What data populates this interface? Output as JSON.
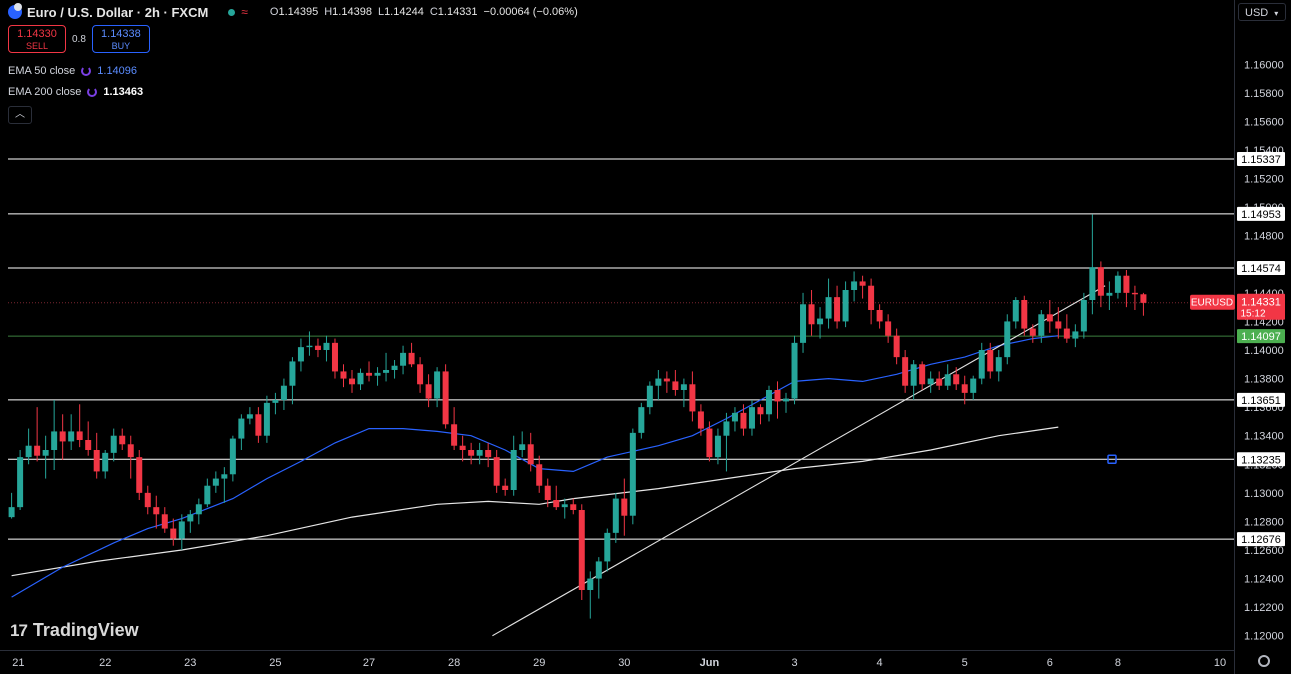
{
  "header": {
    "title": "Euro / U.S. Dollar · 2h · FXCM",
    "ohlc": [
      {
        "key": "O",
        "value": "1.14395"
      },
      {
        "key": "H",
        "value": "1.14398"
      },
      {
        "key": "L",
        "value": "1.14244"
      },
      {
        "key": "C",
        "value": "1.14331"
      }
    ],
    "change": "−0.00064 (−0.06%)"
  },
  "trade": {
    "sell_price": "1.14330",
    "sell_label": "SELL",
    "spread": "0.8",
    "buy_price": "1.14338",
    "buy_label": "BUY"
  },
  "indicators": [
    {
      "label": "EMA 50 close",
      "value": "1.14096",
      "color": "#2962ff"
    },
    {
      "label": "EMA 200 close",
      "value": "1.13463",
      "color": "#e6e6e6"
    }
  ],
  "currency": "USD",
  "watermark": "TradingView",
  "colors": {
    "up": "#26a69a",
    "down": "#f23645",
    "ema50": "#2962ff",
    "ema200": "#e6e6e6",
    "level": "#ffffff",
    "ema_badge": "#4caf50",
    "last_price": "#f23645"
  },
  "chart_data": {
    "type": "candlestick",
    "symbol": "EURUSD",
    "y_axis": {
      "range": [
        1.119,
        1.1645
      ],
      "ticks": [
        "1.16000",
        "1.15800",
        "1.15600",
        "1.15400",
        "1.15200",
        "1.15000",
        "1.14800",
        "1.14600",
        "1.14400",
        "1.14200",
        "1.14000",
        "1.13800",
        "1.13600",
        "1.13400",
        "1.13200",
        "1.13000",
        "1.12800",
        "1.12600",
        "1.12400",
        "1.12200",
        "1.12000"
      ]
    },
    "x_axis": {
      "labels": [
        "21",
        "22",
        "23",
        "25",
        "27",
        "28",
        "29",
        "30",
        "Jun",
        "3",
        "4",
        "5",
        "6",
        "8",
        "10"
      ],
      "label_bars": [
        0.8,
        11,
        21,
        31,
        42,
        52,
        62,
        72,
        82,
        92,
        102,
        112,
        122,
        130,
        142
      ],
      "total_bars": 144
    },
    "levels": [
      "1.15337",
      "1.14953",
      "1.14574",
      "1.14097",
      "1.13651",
      "1.13235",
      "1.12676"
    ],
    "last_price": {
      "symbol": "EURUSD",
      "value": "1.14331",
      "countdown": "15:12"
    },
    "ema50_level": "1.14097",
    "trendline": [
      [
        56.5,
        1.12
      ],
      [
        128.5,
        1.1445
      ]
    ],
    "ema50_series": [
      [
        0,
        1.1227
      ],
      [
        6,
        1.1248
      ],
      [
        12,
        1.1265
      ],
      [
        16,
        1.1275
      ],
      [
        20,
        1.1282
      ],
      [
        26,
        1.1296
      ],
      [
        30,
        1.131
      ],
      [
        34,
        1.1322
      ],
      [
        38,
        1.1335
      ],
      [
        42,
        1.1345
      ],
      [
        46,
        1.1345
      ],
      [
        50,
        1.1343
      ],
      [
        54,
        1.134
      ],
      [
        58,
        1.133
      ],
      [
        62,
        1.1317
      ],
      [
        66,
        1.1315
      ],
      [
        70,
        1.1325
      ],
      [
        76,
        1.1333
      ],
      [
        80,
        1.134
      ],
      [
        84,
        1.1352
      ],
      [
        88,
        1.1365
      ],
      [
        92,
        1.1378
      ],
      [
        96,
        1.138
      ],
      [
        100,
        1.1378
      ],
      [
        104,
        1.1383
      ],
      [
        108,
        1.139
      ],
      [
        112,
        1.1395
      ],
      [
        116,
        1.1403
      ],
      [
        120,
        1.1408
      ],
      [
        123,
        1.141
      ]
    ],
    "ema200_series": [
      [
        0,
        1.1242
      ],
      [
        10,
        1.1252
      ],
      [
        20,
        1.126
      ],
      [
        30,
        1.127
      ],
      [
        40,
        1.1283
      ],
      [
        50,
        1.1292
      ],
      [
        56,
        1.1294
      ],
      [
        62,
        1.1292
      ],
      [
        66,
        1.1296
      ],
      [
        76,
        1.1303
      ],
      [
        84,
        1.131
      ],
      [
        92,
        1.1317
      ],
      [
        100,
        1.1322
      ],
      [
        108,
        1.133
      ],
      [
        116,
        1.134
      ],
      [
        123,
        1.1346
      ]
    ],
    "candles": [
      [
        1.1283,
        1.13,
        1.1282,
        1.129
      ],
      [
        1.129,
        1.133,
        1.1288,
        1.1325
      ],
      [
        1.1325,
        1.1345,
        1.132,
        1.1333
      ],
      [
        1.1333,
        1.136,
        1.1322,
        1.1326
      ],
      [
        1.1326,
        1.134,
        1.131,
        1.133
      ],
      [
        1.133,
        1.1365,
        1.1316,
        1.1343
      ],
      [
        1.1343,
        1.1355,
        1.1323,
        1.1336
      ],
      [
        1.1336,
        1.1355,
        1.133,
        1.1343
      ],
      [
        1.1343,
        1.1362,
        1.1332,
        1.1337
      ],
      [
        1.1337,
        1.135,
        1.1326,
        1.133
      ],
      [
        1.133,
        1.1342,
        1.131,
        1.1315
      ],
      [
        1.1315,
        1.133,
        1.131,
        1.1328
      ],
      [
        1.1328,
        1.1345,
        1.1322,
        1.134
      ],
      [
        1.134,
        1.1345,
        1.133,
        1.1334
      ],
      [
        1.1334,
        1.134,
        1.131,
        1.1325
      ],
      [
        1.1325,
        1.133,
        1.1295,
        1.13
      ],
      [
        1.13,
        1.1305,
        1.1285,
        1.129
      ],
      [
        1.129,
        1.1298,
        1.1275,
        1.1285
      ],
      [
        1.1285,
        1.129,
        1.1272,
        1.1275
      ],
      [
        1.1275,
        1.1282,
        1.1263,
        1.1268
      ],
      [
        1.1268,
        1.1285,
        1.126,
        1.128
      ],
      [
        1.128,
        1.1288,
        1.1272,
        1.1285
      ],
      [
        1.1285,
        1.1296,
        1.1278,
        1.1292
      ],
      [
        1.1292,
        1.131,
        1.129,
        1.1305
      ],
      [
        1.1305,
        1.1315,
        1.13,
        1.131
      ],
      [
        1.131,
        1.1318,
        1.1293,
        1.1313
      ],
      [
        1.1313,
        1.134,
        1.1308,
        1.1338
      ],
      [
        1.1338,
        1.1355,
        1.133,
        1.1352
      ],
      [
        1.1352,
        1.136,
        1.1348,
        1.1355
      ],
      [
        1.1355,
        1.136,
        1.1335,
        1.134
      ],
      [
        1.134,
        1.1368,
        1.1335,
        1.1363
      ],
      [
        1.1363,
        1.137,
        1.1355,
        1.1365
      ],
      [
        1.1365,
        1.138,
        1.1358,
        1.1375
      ],
      [
        1.1375,
        1.1395,
        1.1362,
        1.1392
      ],
      [
        1.1392,
        1.1408,
        1.1385,
        1.1402
      ],
      [
        1.1402,
        1.1413,
        1.1396,
        1.1403
      ],
      [
        1.1403,
        1.1408,
        1.1395,
        1.14
      ],
      [
        1.14,
        1.141,
        1.1392,
        1.1405
      ],
      [
        1.1405,
        1.1408,
        1.138,
        1.1385
      ],
      [
        1.1385,
        1.139,
        1.1374,
        1.138
      ],
      [
        1.138,
        1.1386,
        1.137,
        1.1376
      ],
      [
        1.1376,
        1.1387,
        1.1372,
        1.1384
      ],
      [
        1.1384,
        1.1392,
        1.1378,
        1.1382
      ],
      [
        1.1382,
        1.1388,
        1.1375,
        1.1384
      ],
      [
        1.1384,
        1.1398,
        1.1378,
        1.1386
      ],
      [
        1.1386,
        1.1393,
        1.138,
        1.1389
      ],
      [
        1.1389,
        1.1403,
        1.1383,
        1.1398
      ],
      [
        1.1398,
        1.1405,
        1.1388,
        1.139
      ],
      [
        1.139,
        1.1395,
        1.137,
        1.1376
      ],
      [
        1.1376,
        1.1383,
        1.136,
        1.1366
      ],
      [
        1.1366,
        1.1388,
        1.136,
        1.1385
      ],
      [
        1.1385,
        1.139,
        1.1345,
        1.1348
      ],
      [
        1.1348,
        1.136,
        1.133,
        1.1333
      ],
      [
        1.1333,
        1.134,
        1.1322,
        1.133
      ],
      [
        1.133,
        1.1335,
        1.132,
        1.1326
      ],
      [
        1.1326,
        1.1335,
        1.132,
        1.133
      ],
      [
        1.133,
        1.1335,
        1.1318,
        1.1325
      ],
      [
        1.1325,
        1.133,
        1.13,
        1.1305
      ],
      [
        1.1305,
        1.131,
        1.1298,
        1.1302
      ],
      [
        1.1302,
        1.134,
        1.1298,
        1.133
      ],
      [
        1.133,
        1.1343,
        1.1325,
        1.1334
      ],
      [
        1.1334,
        1.1342,
        1.1315,
        1.132
      ],
      [
        1.132,
        1.1326,
        1.13,
        1.1305
      ],
      [
        1.1305,
        1.131,
        1.129,
        1.1295
      ],
      [
        1.1295,
        1.1305,
        1.1288,
        1.129
      ],
      [
        1.129,
        1.1296,
        1.1282,
        1.1292
      ],
      [
        1.1292,
        1.1296,
        1.1285,
        1.1288
      ],
      [
        1.1288,
        1.1292,
        1.1225,
        1.1232
      ],
      [
        1.1232,
        1.1245,
        1.1212,
        1.124
      ],
      [
        1.124,
        1.1255,
        1.1226,
        1.1252
      ],
      [
        1.1252,
        1.1275,
        1.1245,
        1.1272
      ],
      [
        1.1272,
        1.13,
        1.1265,
        1.1296
      ],
      [
        1.1296,
        1.131,
        1.127,
        1.1284
      ],
      [
        1.1284,
        1.1345,
        1.1278,
        1.1342
      ],
      [
        1.1342,
        1.1363,
        1.1338,
        1.136
      ],
      [
        1.136,
        1.1378,
        1.1355,
        1.1375
      ],
      [
        1.1375,
        1.1386,
        1.1365,
        1.138
      ],
      [
        1.138,
        1.1385,
        1.137,
        1.1378
      ],
      [
        1.1378,
        1.1386,
        1.1368,
        1.1372
      ],
      [
        1.1372,
        1.138,
        1.136,
        1.1376
      ],
      [
        1.1376,
        1.1385,
        1.135,
        1.1357
      ],
      [
        1.1357,
        1.1362,
        1.134,
        1.1345
      ],
      [
        1.1345,
        1.135,
        1.1322,
        1.1325
      ],
      [
        1.1325,
        1.1345,
        1.132,
        1.134
      ],
      [
        1.134,
        1.1356,
        1.1315,
        1.135
      ],
      [
        1.135,
        1.136,
        1.1343,
        1.1356
      ],
      [
        1.1356,
        1.1362,
        1.134,
        1.1345
      ],
      [
        1.1345,
        1.1365,
        1.134,
        1.136
      ],
      [
        1.136,
        1.1362,
        1.1348,
        1.1355
      ],
      [
        1.1355,
        1.1375,
        1.135,
        1.1372
      ],
      [
        1.1372,
        1.1378,
        1.1352,
        1.1364
      ],
      [
        1.1364,
        1.137,
        1.1356,
        1.1366
      ],
      [
        1.1366,
        1.141,
        1.1362,
        1.1405
      ],
      [
        1.1405,
        1.144,
        1.1398,
        1.1432
      ],
      [
        1.1432,
        1.1442,
        1.141,
        1.1418
      ],
      [
        1.1418,
        1.143,
        1.1408,
        1.1422
      ],
      [
        1.1422,
        1.145,
        1.1415,
        1.1437
      ],
      [
        1.1437,
        1.1445,
        1.1415,
        1.142
      ],
      [
        1.142,
        1.1448,
        1.1416,
        1.1442
      ],
      [
        1.1442,
        1.1455,
        1.1434,
        1.1448
      ],
      [
        1.1448,
        1.1452,
        1.1436,
        1.1445
      ],
      [
        1.1445,
        1.145,
        1.1418,
        1.1428
      ],
      [
        1.1428,
        1.1432,
        1.1415,
        1.142
      ],
      [
        1.142,
        1.1425,
        1.1405,
        1.141
      ],
      [
        1.141,
        1.1415,
        1.139,
        1.1395
      ],
      [
        1.1395,
        1.14,
        1.137,
        1.1375
      ],
      [
        1.1375,
        1.1393,
        1.1365,
        1.139
      ],
      [
        1.139,
        1.1392,
        1.1372,
        1.1376
      ],
      [
        1.1376,
        1.1385,
        1.137,
        1.138
      ],
      [
        1.138,
        1.1385,
        1.1372,
        1.1375
      ],
      [
        1.1375,
        1.139,
        1.1372,
        1.1383
      ],
      [
        1.1383,
        1.1388,
        1.1372,
        1.1376
      ],
      [
        1.1376,
        1.1382,
        1.1362,
        1.137
      ],
      [
        1.137,
        1.1382,
        1.1365,
        1.138
      ],
      [
        1.138,
        1.1405,
        1.1376,
        1.14
      ],
      [
        1.14,
        1.1405,
        1.138,
        1.1385
      ],
      [
        1.1385,
        1.14,
        1.1378,
        1.1395
      ],
      [
        1.1395,
        1.1425,
        1.139,
        1.142
      ],
      [
        1.142,
        1.1437,
        1.1415,
        1.1435
      ],
      [
        1.1435,
        1.1438,
        1.141,
        1.1415
      ],
      [
        1.1415,
        1.1418,
        1.1405,
        1.141
      ],
      [
        1.141,
        1.1428,
        1.1405,
        1.1425
      ],
      [
        1.1425,
        1.1435,
        1.1412,
        1.142
      ],
      [
        1.142,
        1.143,
        1.1408,
        1.1415
      ],
      [
        1.1415,
        1.1425,
        1.1405,
        1.1408
      ],
      [
        1.1408,
        1.1418,
        1.1402,
        1.1413
      ],
      [
        1.1413,
        1.144,
        1.1408,
        1.1435
      ],
      [
        1.1435,
        1.1495,
        1.1425,
        1.1458
      ],
      [
        1.1458,
        1.1462,
        1.143,
        1.1438
      ],
      [
        1.1438,
        1.1448,
        1.1428,
        1.144
      ],
      [
        1.144,
        1.1455,
        1.1436,
        1.1452
      ],
      [
        1.1452,
        1.1456,
        1.143,
        1.144
      ],
      [
        1.144,
        1.1445,
        1.1428,
        1.1439
      ],
      [
        1.1439,
        1.144,
        1.1424,
        1.1433
      ]
    ]
  }
}
